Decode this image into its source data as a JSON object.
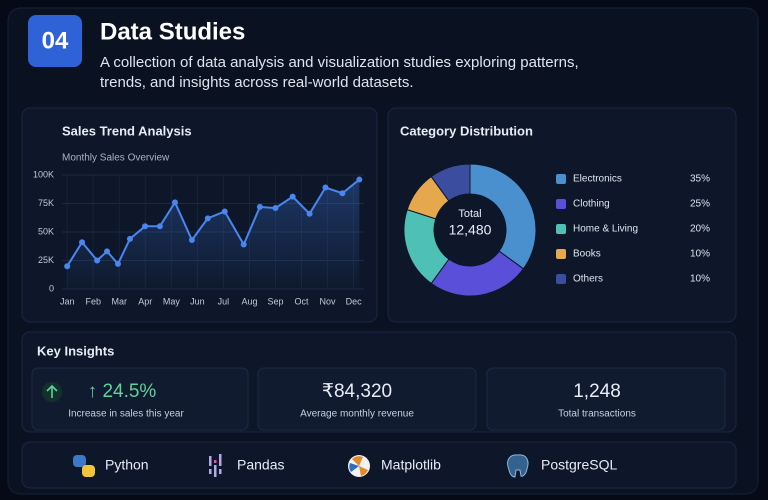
{
  "header": {
    "badge": "04",
    "title": "Data Studies",
    "description": [
      "A collection of data analysis and visualization studies exploring patterns,",
      "trends, and insights across real-world datasets."
    ]
  },
  "chart_data": [
    {
      "type": "line",
      "title": "Sales Trend Analysis",
      "subtitle": "Monthly Sales Overview",
      "color": "#4a86f0",
      "x": [
        1,
        1.57,
        2.15,
        2.53,
        2.95,
        3.41,
        3.99,
        4.56,
        5.14,
        5.79,
        6.4,
        7.05,
        7.78,
        8.4,
        9.0,
        9.66,
        10.31,
        10.92,
        11.57,
        12.22
      ],
      "values": [
        20000,
        41000,
        25000,
        33000,
        22000,
        44000,
        55000,
        55000,
        76000,
        43000,
        62000,
        68000,
        39000,
        72000,
        71000,
        81000,
        66000,
        89000,
        84000,
        96000
      ],
      "xlim": [
        0.8,
        12.4
      ],
      "xticks": [
        {
          "value": 1,
          "label": "Jan"
        },
        {
          "value": 2,
          "label": "Feb"
        },
        {
          "value": 3,
          "label": "Mar"
        },
        {
          "value": 4,
          "label": "Apr"
        },
        {
          "value": 5,
          "label": "May"
        },
        {
          "value": 6,
          "label": "Jun"
        },
        {
          "value": 7,
          "label": "Jul"
        },
        {
          "value": 8,
          "label": "Aug"
        },
        {
          "value": 9,
          "label": "Sep"
        },
        {
          "value": 10,
          "label": "Oct"
        },
        {
          "value": 11,
          "label": "Nov"
        },
        {
          "value": 12,
          "label": "Dec"
        }
      ],
      "ylim": [
        0,
        100000
      ],
      "yticks": [
        0,
        {
          "value": 25000,
          "label": "25K"
        },
        {
          "value": 50000,
          "label": "50K"
        },
        {
          "value": 75000,
          "label": "75K"
        },
        {
          "value": 100000,
          "label": "100K"
        }
      ],
      "grid": true
    },
    {
      "type": "pie",
      "title": "Category Distribution",
      "center_label": "Total",
      "center_value": "12,480",
      "categories": [
        "Electronics",
        "Clothing",
        "Home & Living",
        "Books",
        "Others"
      ],
      "values": [
        35,
        25,
        20,
        10,
        10
      ],
      "value_labels": [
        "35%",
        "25%",
        "20%",
        "10%",
        "10%"
      ],
      "colors": [
        "#4a90cf",
        "#5a4fd8",
        "#4fc0b5",
        "#e6a84c",
        "#3b4d9e"
      ]
    }
  ],
  "insights": {
    "title": "Key Insights",
    "items": [
      {
        "value": "↑ 24.5%",
        "label": "Increase in sales this year"
      },
      {
        "value": "₹84,320",
        "label": "Average monthly revenue"
      },
      {
        "value": "1,248",
        "label": "Total transactions"
      }
    ]
  },
  "tools": [
    "Python",
    "Pandas",
    "Matplotlib",
    "PostgreSQL"
  ]
}
